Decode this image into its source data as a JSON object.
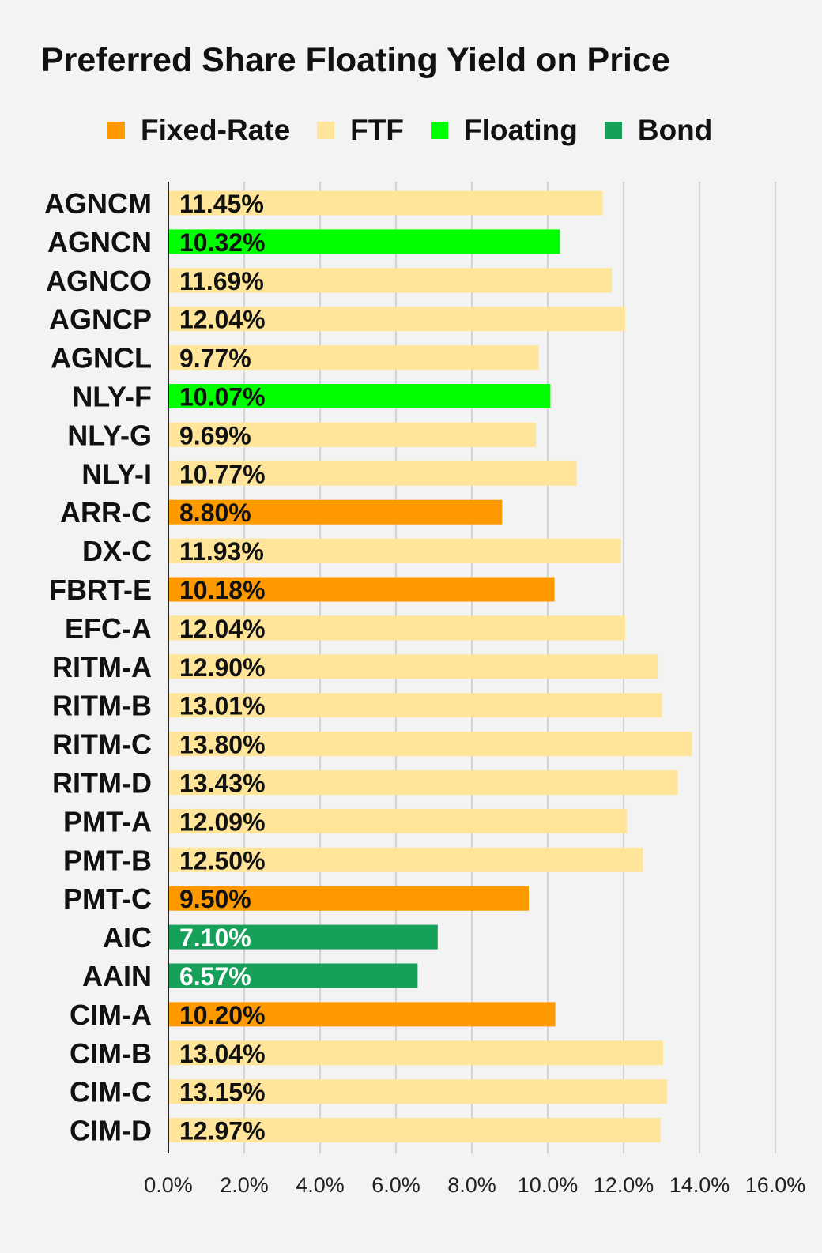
{
  "chart_data": {
    "type": "bar",
    "orientation": "horizontal",
    "title": "Preferred Share Floating Yield on Price",
    "legend_position": "top",
    "grid": true,
    "xlim": [
      0,
      16
    ],
    "xticks": [
      "0.0%",
      "2.0%",
      "4.0%",
      "6.0%",
      "8.0%",
      "10.0%",
      "12.0%",
      "14.0%",
      "16.0%"
    ],
    "legend": [
      {
        "name": "Fixed-Rate",
        "color": "#ff9900"
      },
      {
        "name": "FTF",
        "color": "#ffe599"
      },
      {
        "name": "Floating",
        "color": "#00ff00"
      },
      {
        "name": "Bond",
        "color": "#16a05a"
      }
    ],
    "categories": [
      "AGNCM",
      "AGNCN",
      "AGNCO",
      "AGNCP",
      "AGNCL",
      "NLY-F",
      "NLY-G",
      "NLY-I",
      "ARR-C",
      "DX-C",
      "FBRT-E",
      "EFC-A",
      "RITM-A",
      "RITM-B",
      "RITM-C",
      "RITM-D",
      "PMT-A",
      "PMT-B",
      "PMT-C",
      "AIC",
      "AAIN",
      "CIM-A",
      "CIM-B",
      "CIM-C",
      "CIM-D"
    ],
    "values": [
      11.45,
      10.32,
      11.69,
      12.04,
      9.77,
      10.07,
      9.69,
      10.77,
      8.8,
      11.93,
      10.18,
      12.04,
      12.9,
      13.01,
      13.8,
      13.43,
      12.09,
      12.5,
      9.5,
      7.1,
      6.57,
      10.2,
      13.04,
      13.15,
      12.97
    ],
    "value_labels": [
      "11.45%",
      "10.32%",
      "11.69%",
      "12.04%",
      "9.77%",
      "10.07%",
      "9.69%",
      "10.77%",
      "8.80%",
      "11.93%",
      "10.18%",
      "12.04%",
      "12.90%",
      "13.01%",
      "13.80%",
      "13.43%",
      "12.09%",
      "12.50%",
      "9.50%",
      "7.10%",
      "6.57%",
      "10.20%",
      "13.04%",
      "13.15%",
      "12.97%"
    ],
    "types": [
      "FTF",
      "Floating",
      "FTF",
      "FTF",
      "FTF",
      "Floating",
      "FTF",
      "FTF",
      "Fixed-Rate",
      "FTF",
      "Fixed-Rate",
      "FTF",
      "FTF",
      "FTF",
      "FTF",
      "FTF",
      "FTF",
      "FTF",
      "Fixed-Rate",
      "Bond",
      "Bond",
      "Fixed-Rate",
      "FTF",
      "FTF",
      "FTF"
    ]
  }
}
